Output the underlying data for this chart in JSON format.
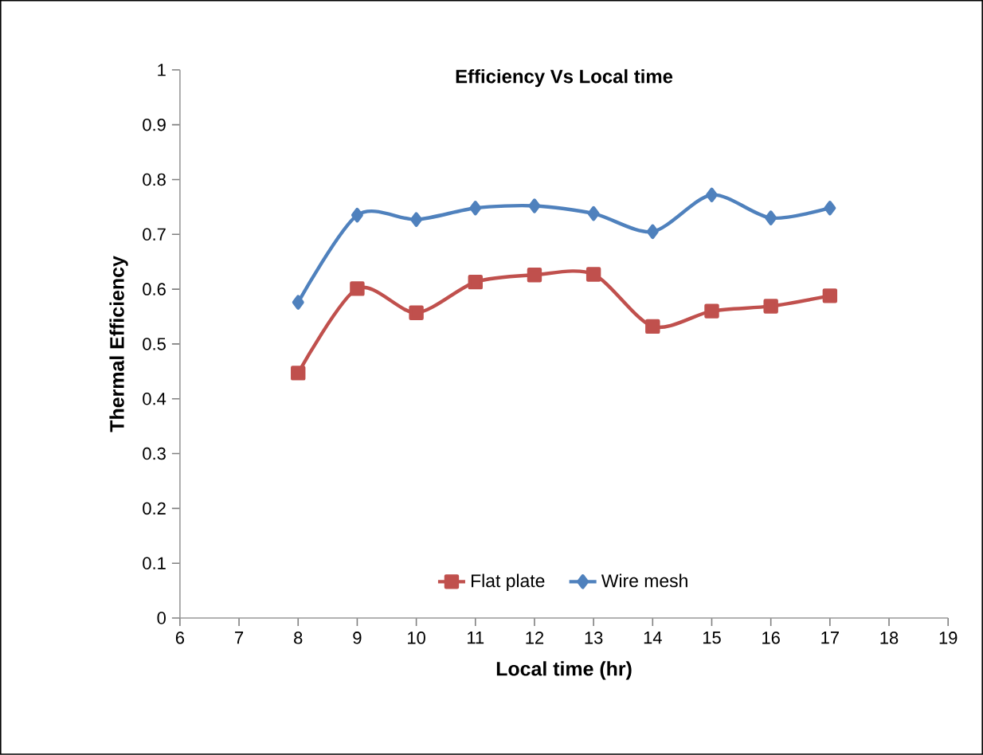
{
  "chart_data": {
    "type": "line",
    "title": "Efficiency Vs Local time",
    "xlabel": "Local time (hr)",
    "ylabel": "Thermal Efficiency",
    "x": [
      8,
      9,
      10,
      11,
      12,
      13,
      14,
      15,
      16,
      17
    ],
    "series": [
      {
        "name": "Flat plate",
        "color": "#c0504d",
        "marker": "square",
        "values": [
          0.447,
          0.601,
          0.557,
          0.613,
          0.626,
          0.627,
          0.532,
          0.56,
          0.569,
          0.588
        ]
      },
      {
        "name": "Wire mesh",
        "color": "#4f81bd",
        "marker": "diamond",
        "values": [
          0.576,
          0.735,
          0.727,
          0.748,
          0.752,
          0.738,
          0.705,
          0.772,
          0.73,
          0.748
        ]
      }
    ],
    "xlim": [
      6,
      19
    ],
    "xticks": [
      6,
      7,
      8,
      9,
      10,
      11,
      12,
      13,
      14,
      15,
      16,
      17,
      18,
      19
    ],
    "ylim": [
      0,
      1
    ],
    "yticks": [
      0,
      0.1,
      0.2,
      0.3,
      0.4,
      0.5,
      0.6,
      0.7,
      0.8,
      0.9,
      1
    ],
    "grid": false,
    "legend": "bottom",
    "line_style": "solid"
  }
}
